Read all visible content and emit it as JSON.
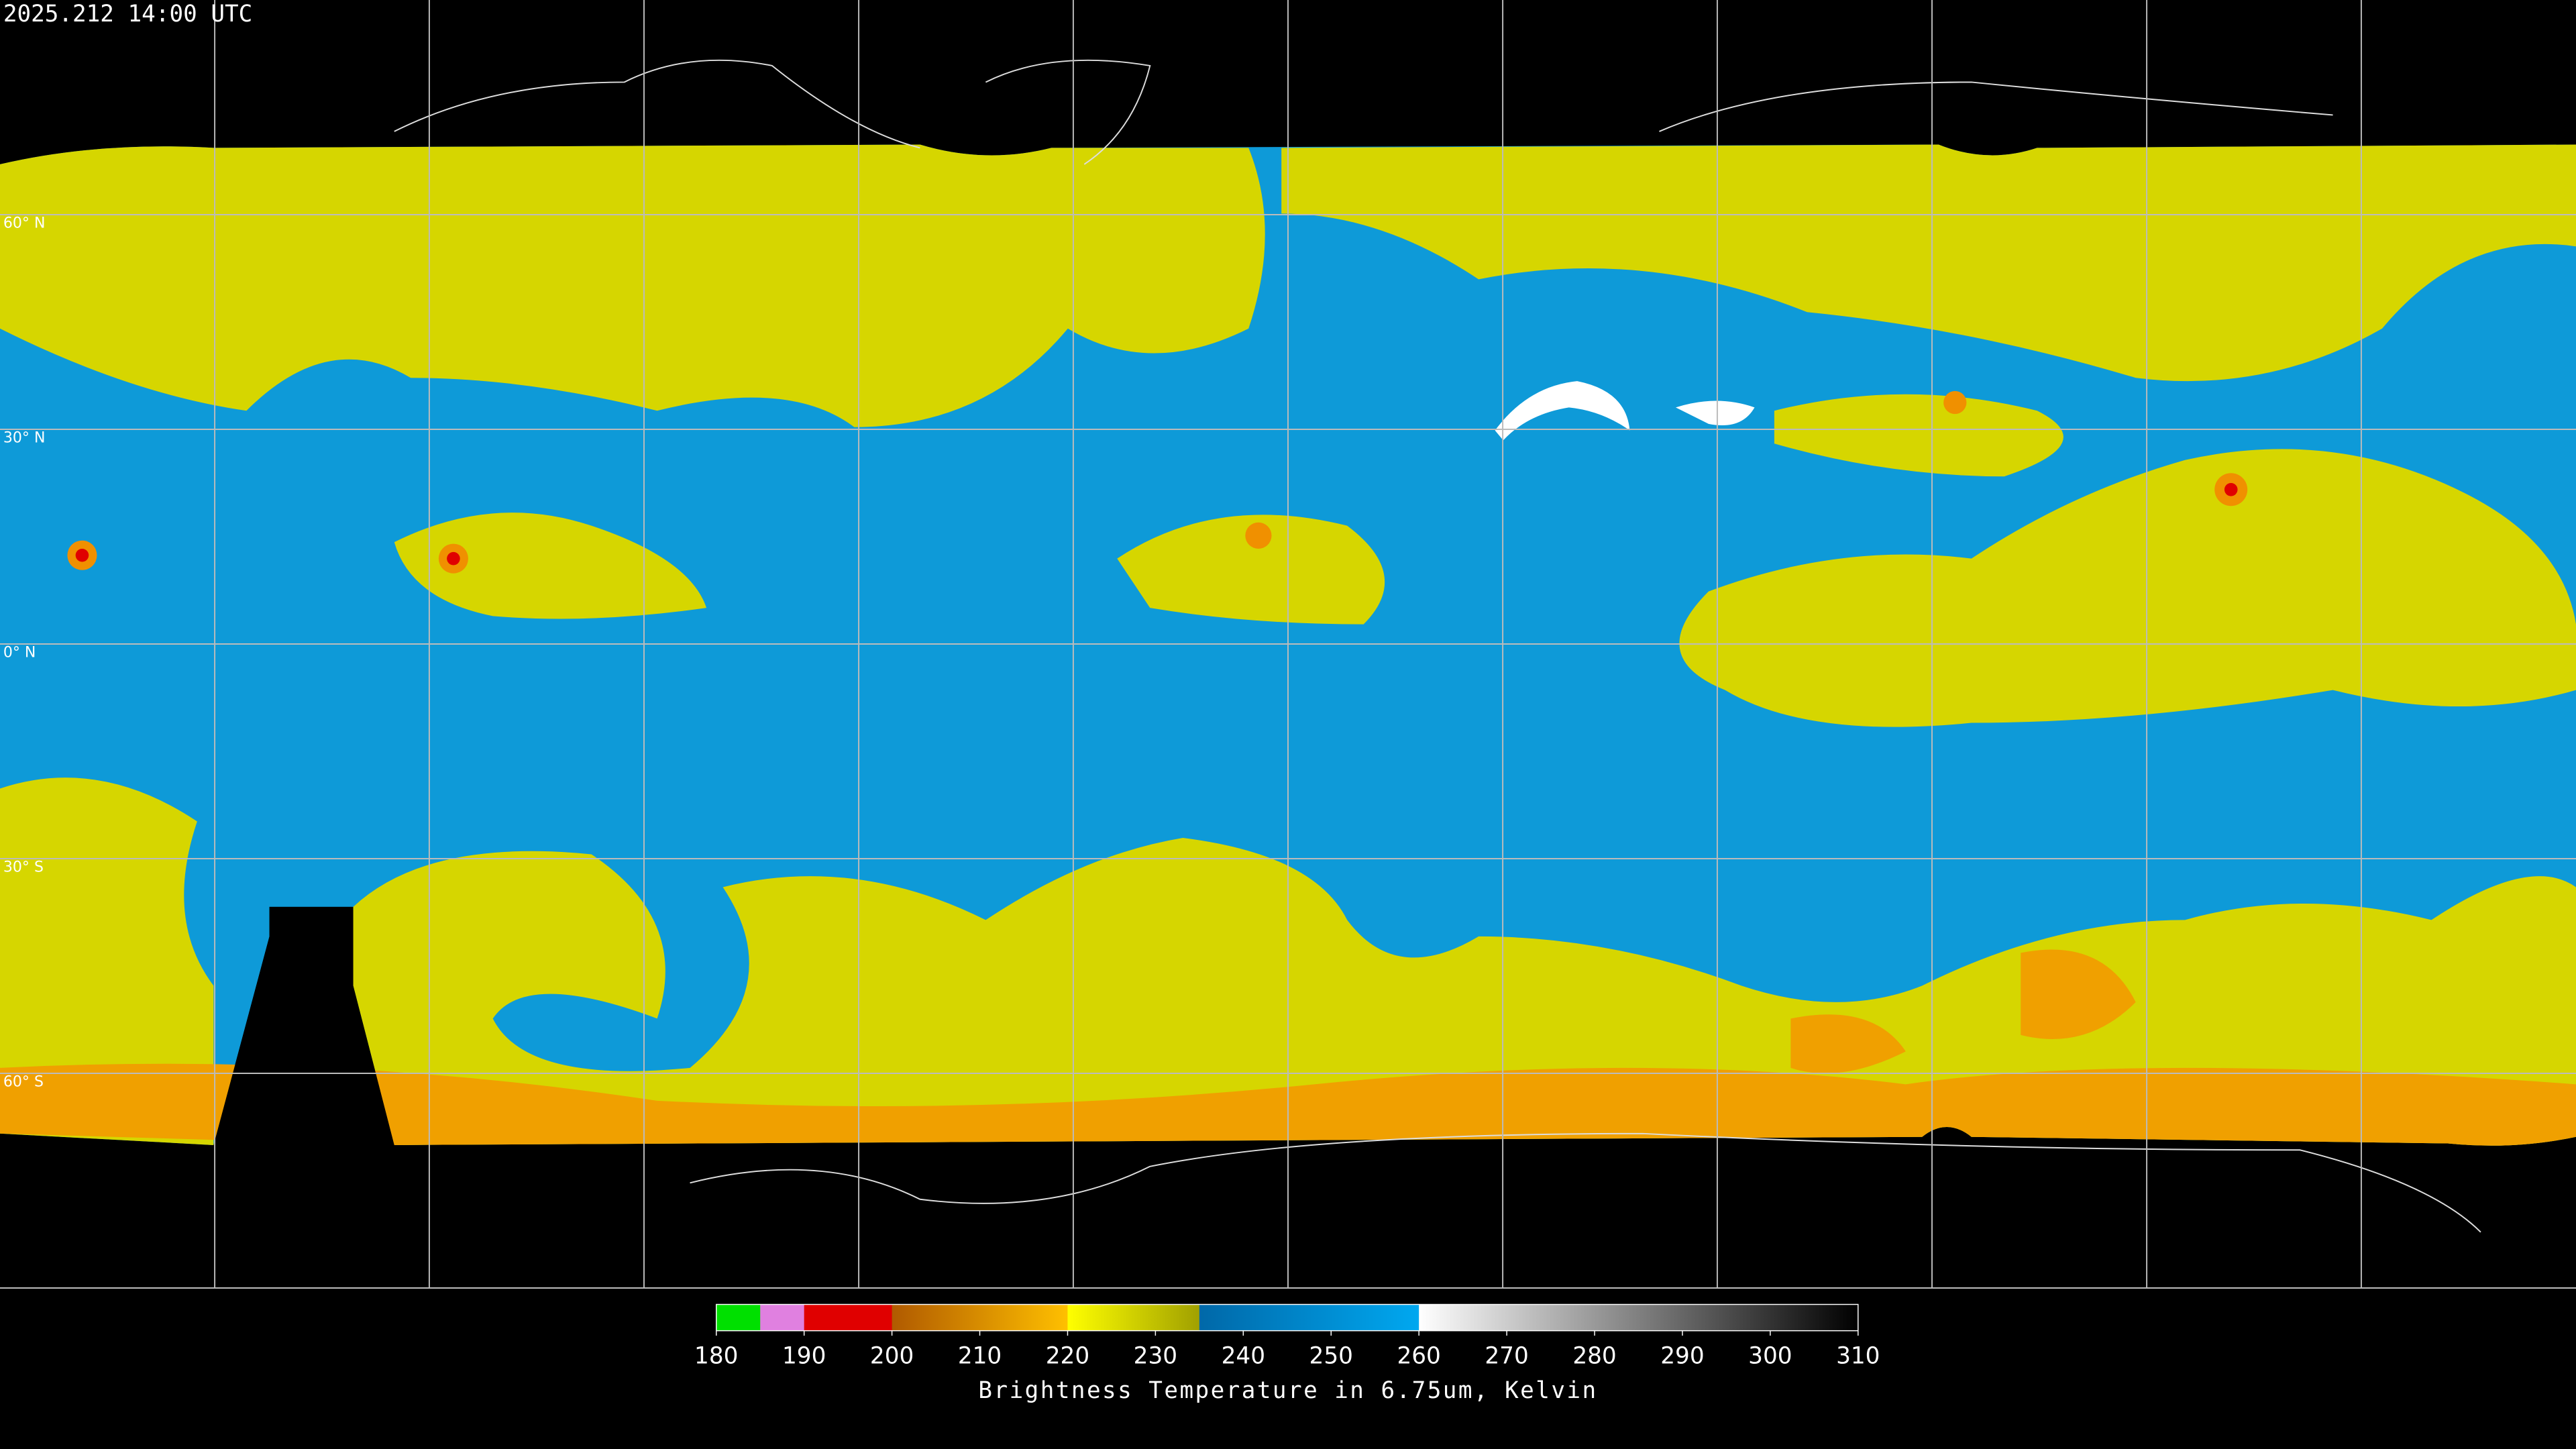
{
  "header": {
    "timestamp": "2025.212 14:00 UTC"
  },
  "map": {
    "lat_lines": [
      {
        "value": 60,
        "label": "60° N"
      },
      {
        "value": 30,
        "label": "30° N"
      },
      {
        "value": 0,
        "label": "0° N"
      },
      {
        "value": -30,
        "label": "30° S"
      },
      {
        "value": -60,
        "label": "60° S"
      }
    ],
    "latlim": [
      90,
      -90
    ]
  },
  "colorbar": {
    "title": "Brightness Temperature in 6.75um, Kelvin",
    "lim": [
      180,
      310
    ],
    "ticks": [
      180,
      190,
      200,
      210,
      220,
      230,
      240,
      250,
      260,
      270,
      280,
      290,
      300,
      310
    ],
    "stops": [
      {
        "value": 180,
        "color": "#00e000"
      },
      {
        "value": 185,
        "color": "#00e000"
      },
      {
        "value": 185,
        "color": "#e080e0"
      },
      {
        "value": 190,
        "color": "#e080e0"
      },
      {
        "value": 190,
        "color": "#e00000"
      },
      {
        "value": 200,
        "color": "#e00000"
      },
      {
        "value": 200,
        "color": "#b05a00"
      },
      {
        "value": 220,
        "color": "#ffc000"
      },
      {
        "value": 220,
        "color": "#ffff00"
      },
      {
        "value": 235,
        "color": "#a0a000"
      },
      {
        "value": 235,
        "color": "#0068a8"
      },
      {
        "value": 260,
        "color": "#00a8f0"
      },
      {
        "value": 260,
        "color": "#ffffff"
      },
      {
        "value": 310,
        "color": "#000000"
      }
    ]
  }
}
